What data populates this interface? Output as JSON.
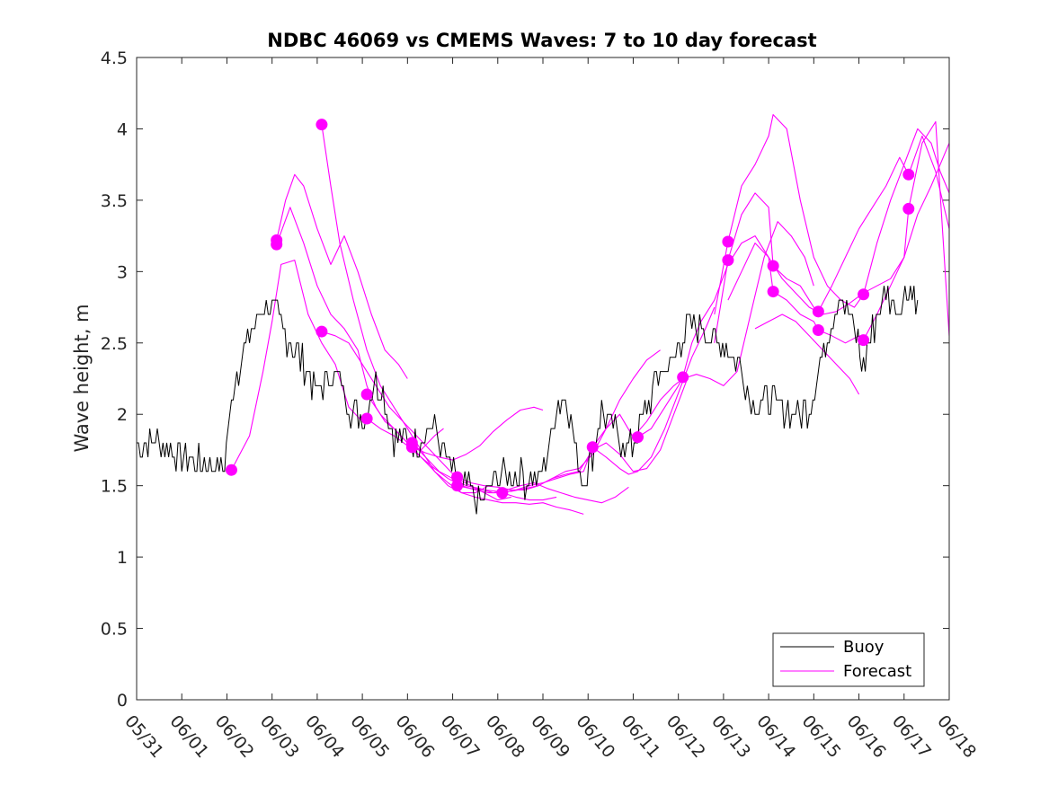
{
  "chart_data": {
    "type": "line",
    "title": "NDBC 46069 vs CMEMS Waves: 7 to 10 day forecast",
    "xlabel": "",
    "ylabel": "Wave height, m",
    "xlim": [
      0,
      18
    ],
    "ylim": [
      0,
      4.5
    ],
    "x_ticks": [
      0,
      1,
      2,
      3,
      4,
      5,
      6,
      7,
      8,
      9,
      10,
      11,
      12,
      13,
      14,
      15,
      16,
      17,
      18
    ],
    "x_tick_labels": [
      "05/31",
      "06/01",
      "06/02",
      "06/03",
      "06/04",
      "06/05",
      "06/06",
      "06/07",
      "06/08",
      "06/09",
      "06/10",
      "06/11",
      "06/12",
      "06/13",
      "06/14",
      "06/15",
      "06/16",
      "06/17",
      "06/18"
    ],
    "y_ticks": [
      0,
      0.5,
      1,
      1.5,
      2,
      2.5,
      3,
      3.5,
      4,
      4.5
    ],
    "y_tick_labels": [
      "0",
      "0.5",
      "1",
      "1.5",
      "2",
      "2.5",
      "3",
      "3.5",
      "4",
      "4.5"
    ],
    "grid": false,
    "legend": {
      "placement": "bottom-right",
      "entries": [
        "Buoy",
        "Forecast"
      ]
    },
    "colors": {
      "buoy": "#000000",
      "forecast": "#ff00ff"
    },
    "buoy": {
      "name": "Buoy",
      "x": [
        0.0,
        0.5,
        1.0,
        1.5,
        1.95,
        2.1,
        2.3,
        2.5,
        2.7,
        3.0,
        3.2,
        3.5,
        3.8,
        4.0,
        4.3,
        4.5,
        4.7,
        5.0,
        5.3,
        5.5,
        5.7,
        6.0,
        6.3,
        6.6,
        6.9,
        7.1,
        7.4,
        7.7,
        8.0,
        8.3,
        8.6,
        8.9,
        9.1,
        9.3,
        9.5,
        9.7,
        9.9,
        10.1,
        10.3,
        10.6,
        10.9,
        11.1,
        11.3,
        11.6,
        11.9,
        12.1,
        12.3,
        12.6,
        12.9,
        13.1,
        13.4,
        13.7,
        14.0,
        14.3,
        14.6,
        14.9,
        15.1,
        15.3,
        15.6,
        15.9,
        16.1,
        16.3,
        16.6,
        16.9,
        17.1,
        17.3
      ],
      "y": [
        1.8,
        1.8,
        1.7,
        1.65,
        1.65,
        2.1,
        2.4,
        2.55,
        2.7,
        2.75,
        2.6,
        2.45,
        2.3,
        2.15,
        2.3,
        2.25,
        2.05,
        1.95,
        2.25,
        2.1,
        1.85,
        1.8,
        1.85,
        1.9,
        1.65,
        1.5,
        1.45,
        1.4,
        1.55,
        1.6,
        1.55,
        1.55,
        1.7,
        2.05,
        2.15,
        1.8,
        1.55,
        1.75,
        2.05,
        1.9,
        1.75,
        1.85,
        2.05,
        2.3,
        2.4,
        2.55,
        2.65,
        2.6,
        2.5,
        2.45,
        2.3,
        2.05,
        2.1,
        2.05,
        2.0,
        2.05,
        2.3,
        2.55,
        2.85,
        2.6,
        2.35,
        2.6,
        2.85,
        2.75,
        2.9,
        2.8
      ]
    },
    "forecasts": [
      {
        "x": [
          2.1,
          2.5,
          2.8,
          3.0,
          3.2,
          3.5,
          3.8,
          4.1,
          4.4,
          4.7,
          5.0
        ],
        "y": [
          1.61,
          1.85,
          2.3,
          2.65,
          3.05,
          3.08,
          2.7,
          2.5,
          2.35,
          2.05,
          1.95
        ]
      },
      {
        "x": [
          3.1,
          3.3,
          3.5,
          3.7,
          4.0,
          4.3,
          4.6,
          4.9,
          5.2,
          5.5,
          5.8,
          6.0
        ],
        "y": [
          3.22,
          3.5,
          3.68,
          3.6,
          3.3,
          3.05,
          3.25,
          3.0,
          2.7,
          2.45,
          2.35,
          2.25
        ]
      },
      {
        "x": [
          3.1,
          3.4,
          3.7,
          4.0,
          4.3,
          4.6,
          4.9,
          5.1,
          5.3,
          5.5,
          5.7,
          6.0,
          6.3,
          6.6,
          6.8
        ],
        "y": [
          3.19,
          3.45,
          3.2,
          2.9,
          2.7,
          2.6,
          2.45,
          2.2,
          2.05,
          1.95,
          1.9,
          1.8,
          1.75,
          1.85,
          1.9
        ]
      },
      {
        "x": [
          4.1,
          4.3,
          4.5,
          4.8,
          5.1,
          5.4,
          5.7,
          6.0,
          6.3,
          6.6,
          6.9,
          7.2,
          7.5,
          7.8
        ],
        "y": [
          4.03,
          3.6,
          3.2,
          2.8,
          2.45,
          2.2,
          2.05,
          1.9,
          1.75,
          1.6,
          1.5,
          1.45,
          1.45,
          1.5
        ]
      },
      {
        "x": [
          4.1,
          4.4,
          4.7,
          5.0,
          5.3,
          5.6,
          5.9,
          6.2,
          6.5,
          6.8,
          7.1,
          7.4,
          7.7,
          8.0,
          8.3
        ],
        "y": [
          2.58,
          2.55,
          2.5,
          2.35,
          2.2,
          2.05,
          1.95,
          1.85,
          1.75,
          1.65,
          1.55,
          1.5,
          1.45,
          1.4,
          1.42
        ]
      },
      {
        "x": [
          5.1,
          5.4,
          5.7,
          6.0,
          6.3,
          6.6,
          6.9,
          7.2,
          7.5,
          7.8,
          8.1,
          8.4,
          8.7,
          9.0,
          9.3
        ],
        "y": [
          2.14,
          2.0,
          1.9,
          1.8,
          1.7,
          1.62,
          1.55,
          1.5,
          1.47,
          1.45,
          1.45,
          1.42,
          1.4,
          1.4,
          1.42
        ]
      },
      {
        "x": [
          5.1,
          5.4,
          5.7,
          6.0,
          6.3,
          6.6,
          6.9,
          7.2,
          7.5,
          7.8,
          8.1,
          8.4,
          8.7,
          9.0,
          9.3,
          9.6,
          9.9
        ],
        "y": [
          1.97,
          1.9,
          1.85,
          1.78,
          1.7,
          1.6,
          1.52,
          1.45,
          1.42,
          1.4,
          1.38,
          1.38,
          1.37,
          1.38,
          1.35,
          1.33,
          1.3
        ]
      },
      {
        "x": [
          6.1,
          6.4,
          6.7,
          7.0,
          7.3,
          7.6,
          7.9,
          8.2,
          8.5,
          8.8,
          9.1,
          9.4,
          9.7,
          10.0,
          10.3,
          10.6,
          10.9
        ],
        "y": [
          1.8,
          1.7,
          1.6,
          1.55,
          1.5,
          1.48,
          1.45,
          1.47,
          1.5,
          1.52,
          1.48,
          1.45,
          1.42,
          1.4,
          1.38,
          1.42,
          1.49
        ]
      },
      {
        "x": [
          6.1,
          6.4,
          6.7,
          7.0,
          7.3,
          7.6,
          7.9,
          8.2,
          8.5,
          8.8,
          9.0
        ],
        "y": [
          1.77,
          1.73,
          1.7,
          1.68,
          1.72,
          1.78,
          1.88,
          1.96,
          2.03,
          2.05,
          2.03
        ]
      },
      {
        "x": [
          7.1,
          7.4,
          7.7,
          8.0,
          8.3,
          8.6,
          8.9,
          9.2,
          9.5,
          9.8,
          10.1,
          10.4,
          10.7,
          11.0,
          11.3,
          11.6
        ],
        "y": [
          1.56,
          1.52,
          1.5,
          1.49,
          1.47,
          1.47,
          1.5,
          1.55,
          1.6,
          1.62,
          1.72,
          1.9,
          2.1,
          2.25,
          2.38,
          2.45
        ]
      },
      {
        "x": [
          7.1,
          7.4,
          7.7,
          8.0,
          8.3,
          8.6,
          8.9,
          9.2,
          9.5,
          9.8,
          10.1,
          10.4,
          10.7,
          11.0,
          11.3,
          11.6,
          11.9,
          12.2
        ],
        "y": [
          1.5,
          1.48,
          1.47,
          1.46,
          1.46,
          1.48,
          1.5,
          1.55,
          1.58,
          1.6,
          1.75,
          1.8,
          1.72,
          1.6,
          1.62,
          1.75,
          2.0,
          2.25
        ]
      },
      {
        "x": [
          8.1,
          8.4,
          8.7,
          9.0,
          9.3,
          9.6,
          9.9,
          10.1,
          10.4,
          10.7,
          10.9,
          11.1,
          11.4,
          11.7,
          12.0,
          12.3,
          12.6,
          12.8
        ],
        "y": [
          1.45,
          1.47,
          1.5,
          1.52,
          1.55,
          1.58,
          1.6,
          1.77,
          1.7,
          1.62,
          1.58,
          1.6,
          1.7,
          1.9,
          2.15,
          2.4,
          2.6,
          2.75
        ]
      },
      {
        "x": [
          10.1,
          10.4,
          10.7,
          11.0,
          11.3,
          11.6,
          11.9,
          12.1,
          12.4,
          12.7,
          13.0,
          13.3,
          13.6,
          13.9,
          14.2,
          14.5,
          14.8,
          15.0
        ],
        "y": [
          1.77,
          1.9,
          2.0,
          1.84,
          1.95,
          2.1,
          2.2,
          2.25,
          2.28,
          2.25,
          2.2,
          2.3,
          2.7,
          3.1,
          3.35,
          3.25,
          3.1,
          2.9
        ]
      },
      {
        "x": [
          11.1,
          11.4,
          11.7,
          12.0,
          12.1,
          12.3,
          12.5,
          12.8,
          13.1,
          13.4,
          13.7,
          14.0,
          14.3,
          14.6,
          14.9,
          15.2,
          15.5,
          15.8,
          16.1,
          16.4,
          16.7,
          17.0,
          17.3,
          17.6,
          18.0
        ],
        "y": [
          1.84,
          1.9,
          2.05,
          2.2,
          2.26,
          2.5,
          2.65,
          2.8,
          3.05,
          3.2,
          3.25,
          3.1,
          2.95,
          2.85,
          2.75,
          2.7,
          2.72,
          2.78,
          2.85,
          2.9,
          2.95,
          3.1,
          3.4,
          3.6,
          3.9
        ]
      },
      {
        "x": [
          12.8,
          13.1,
          13.4,
          13.7,
          14.0,
          14.1,
          14.4,
          14.7,
          15.0,
          15.3,
          15.6,
          15.9,
          16.1,
          16.4,
          16.7,
          17.0,
          17.3,
          17.6,
          17.8,
          18.0
        ],
        "y": [
          2.7,
          3.21,
          3.6,
          3.75,
          3.95,
          4.1,
          4.0,
          3.5,
          3.1,
          2.9,
          2.8,
          2.75,
          2.84,
          3.2,
          3.5,
          3.75,
          4.0,
          3.9,
          3.7,
          3.55
        ]
      },
      {
        "x": [
          12.8,
          13.1,
          13.4,
          13.7,
          14.0,
          14.1,
          14.4,
          14.7,
          15.0,
          15.1,
          15.4,
          15.7,
          16.0,
          16.3,
          16.6,
          16.9,
          17.1,
          17.4,
          17.7,
          18.0
        ],
        "y": [
          2.5,
          3.08,
          3.4,
          3.55,
          3.45,
          3.04,
          2.95,
          2.9,
          2.75,
          2.72,
          2.9,
          3.1,
          3.3,
          3.45,
          3.6,
          3.8,
          3.68,
          3.95,
          3.7,
          3.3
        ]
      },
      {
        "x": [
          13.1,
          13.4,
          13.7,
          14.0,
          14.1,
          14.4,
          14.7,
          15.0,
          15.1,
          15.4,
          15.7,
          16.0,
          16.1,
          16.4,
          16.7,
          17.0,
          17.1,
          17.4,
          17.7,
          18.0
        ],
        "y": [
          2.8,
          3.0,
          3.2,
          3.1,
          2.86,
          2.8,
          2.7,
          2.65,
          2.59,
          2.55,
          2.5,
          2.55,
          2.52,
          2.7,
          2.9,
          3.1,
          3.44,
          3.9,
          4.05,
          2.55
        ]
      },
      {
        "x": [
          13.7,
          14.0,
          14.3,
          14.6,
          14.9,
          15.2,
          15.5,
          15.8,
          16.0
        ],
        "y": [
          2.6,
          2.65,
          2.7,
          2.65,
          2.55,
          2.45,
          2.35,
          2.25,
          2.14
        ]
      }
    ],
    "markers": {
      "x": [
        2.1,
        3.1,
        3.1,
        4.1,
        4.1,
        5.1,
        5.1,
        6.1,
        6.1,
        7.1,
        7.1,
        8.1,
        10.1,
        11.1,
        12.1,
        13.1,
        13.1,
        14.1,
        14.1,
        15.1,
        15.1,
        16.1,
        16.1,
        17.1,
        17.1
      ],
      "y": [
        1.61,
        3.22,
        3.19,
        4.03,
        2.58,
        2.14,
        1.97,
        1.8,
        1.77,
        1.56,
        1.5,
        1.45,
        1.77,
        1.84,
        2.26,
        3.21,
        3.08,
        3.04,
        2.86,
        2.72,
        2.59,
        2.84,
        2.52,
        3.68,
        3.44
      ]
    }
  }
}
